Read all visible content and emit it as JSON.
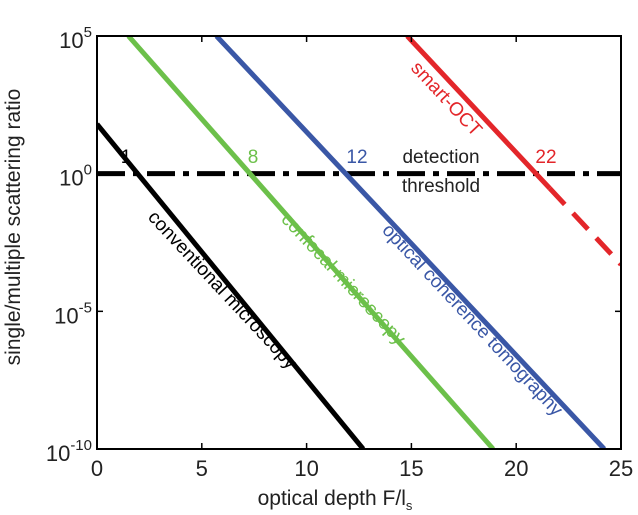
{
  "chart_data": {
    "type": "line",
    "xlabel": "optical depth F/l",
    "xlabel_subscript": "s",
    "ylabel": "single/multiple scattering ratio",
    "xlim": [
      0,
      25
    ],
    "ylog_exponent_lim": [
      -10,
      5
    ],
    "ylog_base": "10",
    "x_ticks": [
      "0",
      "5",
      "10",
      "15",
      "20",
      "25"
    ],
    "y_ticks": [
      {
        "exp": 5,
        "label": "5"
      },
      {
        "exp": 0,
        "label": "0"
      },
      {
        "exp": -5,
        "label": "-5"
      },
      {
        "exp": -10,
        "label": "-10"
      }
    ],
    "grid": false,
    "series": [
      {
        "name": "conventional microscopy",
        "color": "#000000",
        "x": [
          0,
          12.7
        ],
        "log10_y": [
          1.8,
          -10
        ],
        "threshold_crossing_label": "1",
        "label_along_line": true
      },
      {
        "name": "confocal microscopy",
        "color": "#6cc04a",
        "x": [
          1.5,
          18.9
        ],
        "log10_y": [
          5,
          -10
        ],
        "threshold_crossing_label": "8",
        "label_along_line": true
      },
      {
        "name": "optical coherence tomography",
        "color": "#3a57a6",
        "x": [
          5.7,
          24.2
        ],
        "log10_y": [
          5,
          -10
        ],
        "threshold_crossing_label": "12",
        "label_along_line": true
      },
      {
        "name": "smart-OCT",
        "color": "#e3262a",
        "x": [
          14.8,
          25
        ],
        "log10_y": [
          5,
          -3.3
        ],
        "solid_until_x": 21.6,
        "threshold_crossing_label": "22",
        "label_along_line": true
      }
    ],
    "threshold": {
      "log10_y": 0,
      "style": "dash-dot",
      "color": "#000000",
      "label_above": "detection",
      "label_below": "threshold"
    }
  }
}
